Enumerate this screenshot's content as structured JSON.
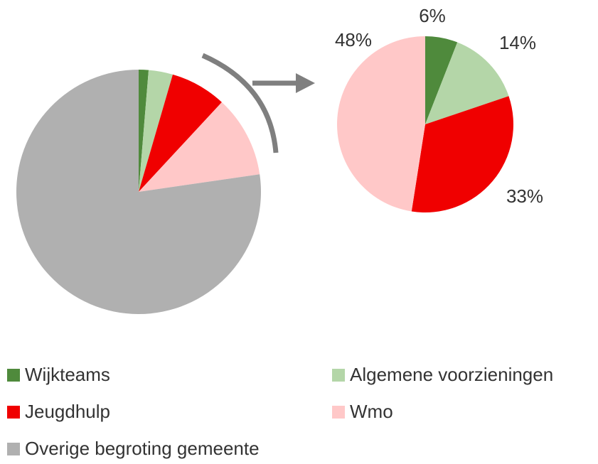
{
  "chart_data": [
    {
      "type": "pie",
      "categories": [
        "Wijkteams",
        "Algemene voorzieningen",
        "Jeugdhulp",
        "Wmo",
        "Overige begroting gemeente"
      ],
      "values": [
        1.3,
        3.2,
        7.4,
        10.8,
        77.3
      ],
      "colors": [
        "#4f8a3c",
        "#b4d6a8",
        "#f00000",
        "#ffc8c8",
        "#b0b0b0"
      ],
      "legend": "bottom"
    },
    {
      "type": "pie",
      "values": [
        6,
        14,
        33,
        48
      ],
      "value_labels": [
        "6%",
        "14%",
        "33%",
        "48%"
      ],
      "colors": [
        "#4f8a3c",
        "#b4d6a8",
        "#f00000",
        "#ffc8c8"
      ]
    }
  ]
}
